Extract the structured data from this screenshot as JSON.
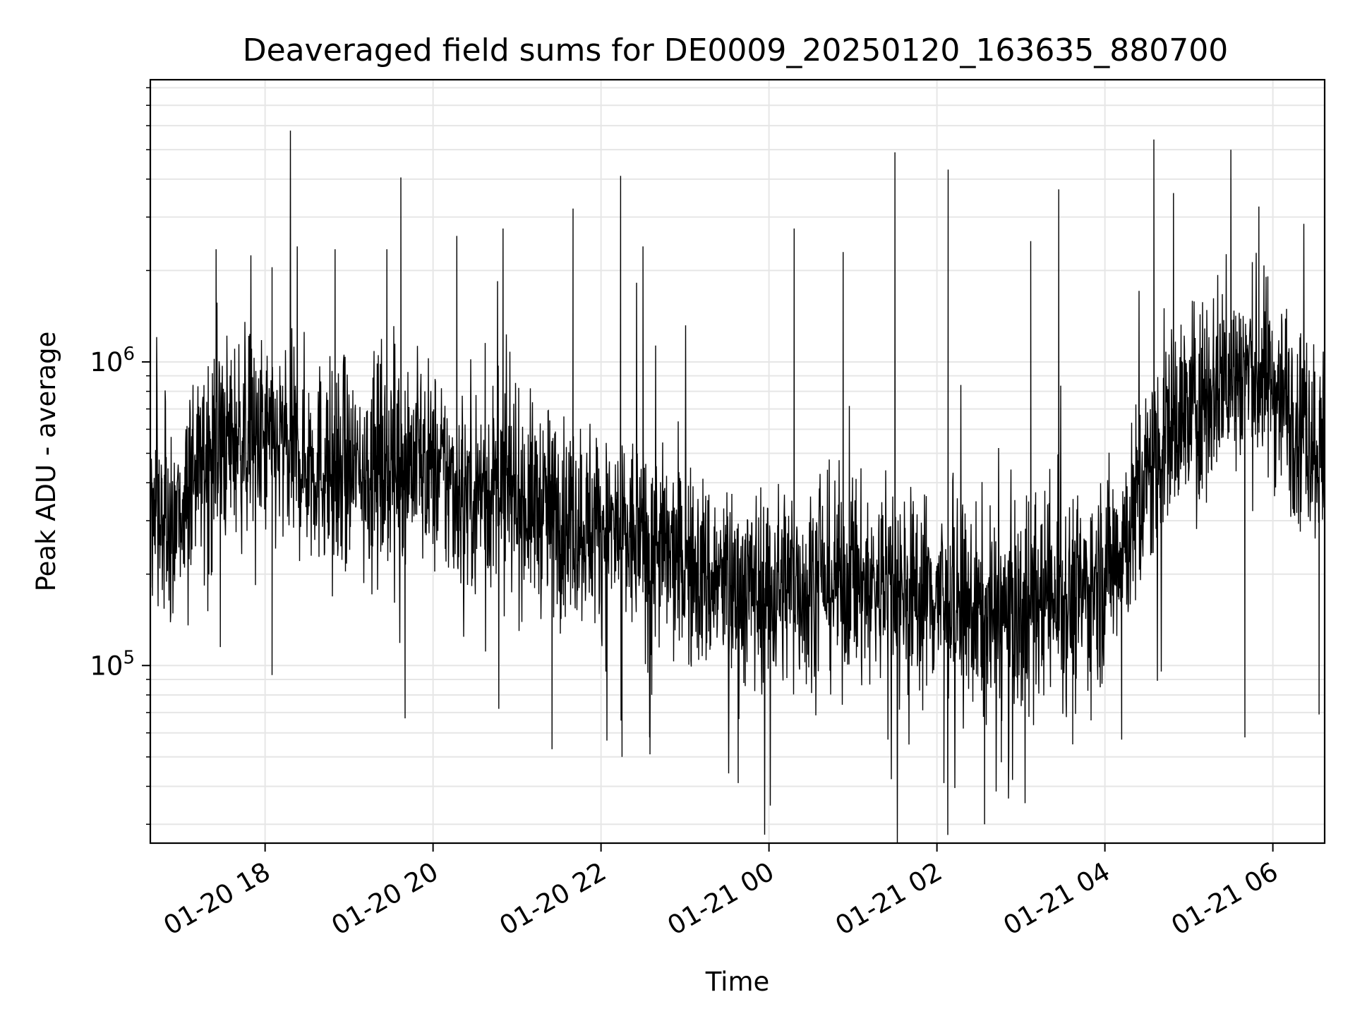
{
  "chart_data": {
    "type": "line",
    "title": "Deaveraged field sums for DE0009_20250120_163635_880700",
    "xlabel": "Time",
    "ylabel": "Peak ADU - average",
    "yscale": "log",
    "ylim": [
      26000,
      8500000
    ],
    "xlim": [
      "2025-01-20 16:38",
      "2025-01-21 06:37"
    ],
    "x_ticks": [
      {
        "t": "2025-01-20 18:00",
        "label": "01-20 18"
      },
      {
        "t": "2025-01-20 20:00",
        "label": "01-20 20"
      },
      {
        "t": "2025-01-20 22:00",
        "label": "01-20 22"
      },
      {
        "t": "2025-01-21 00:00",
        "label": "01-21 00"
      },
      {
        "t": "2025-01-21 02:00",
        "label": "01-21 02"
      },
      {
        "t": "2025-01-21 04:00",
        "label": "01-21 04"
      },
      {
        "t": "2025-01-21 06:00",
        "label": "01-21 06"
      }
    ],
    "y_ticks": [
      {
        "value": 100000,
        "base": "10",
        "exp": "5"
      },
      {
        "value": 1000000,
        "base": "10",
        "exp": "6"
      }
    ],
    "grid": true,
    "line_color": "#000000",
    "series": [
      {
        "x": [
          "2025-01-20 16:38",
          "2025-01-20 17:00",
          "2025-01-20 17:20",
          "2025-01-20 17:40",
          "2025-01-20 18:00",
          "2025-01-20 18:20",
          "2025-01-20 18:40",
          "2025-01-20 19:00",
          "2025-01-20 19:20",
          "2025-01-20 19:40",
          "2025-01-20 20:00",
          "2025-01-20 20:20",
          "2025-01-20 20:40",
          "2025-01-20 21:00",
          "2025-01-20 21:20",
          "2025-01-20 21:40",
          "2025-01-20 22:00",
          "2025-01-20 22:20",
          "2025-01-20 22:40",
          "2025-01-20 23:00",
          "2025-01-20 23:20",
          "2025-01-20 23:40",
          "2025-01-21 00:00",
          "2025-01-21 00:20",
          "2025-01-21 00:40",
          "2025-01-21 01:00",
          "2025-01-21 01:20",
          "2025-01-21 01:40",
          "2025-01-21 02:00",
          "2025-01-21 02:20",
          "2025-01-21 02:40",
          "2025-01-21 03:00",
          "2025-01-21 03:20",
          "2025-01-21 03:40",
          "2025-01-21 04:00",
          "2025-01-21 04:20",
          "2025-01-21 04:40",
          "2025-01-21 05:00",
          "2025-01-21 05:20",
          "2025-01-21 05:40",
          "2025-01-21 06:00",
          "2025-01-21 06:20",
          "2025-01-21 06:37"
        ],
        "values": [
          300000,
          320000,
          520000,
          560000,
          540000,
          500000,
          460000,
          430000,
          460000,
          500000,
          440000,
          380000,
          380000,
          350000,
          330000,
          300000,
          290000,
          260000,
          240000,
          210000,
          190000,
          180000,
          180000,
          190000,
          190000,
          185000,
          180000,
          180000,
          170000,
          150000,
          145000,
          150000,
          170000,
          165000,
          200000,
          300000,
          560000,
          700000,
          850000,
          950000,
          850000,
          650000,
          500000
        ]
      }
    ],
    "spikes": [
      {
        "x": "2025-01-20 17:25",
        "value": 2350000
      },
      {
        "x": "2025-01-20 18:05",
        "value": 2050000
      },
      {
        "x": "2025-01-20 18:23",
        "value": 2400000
      },
      {
        "x": "2025-01-20 18:50",
        "value": 2350000
      },
      {
        "x": "2025-01-20 19:27",
        "value": 2350000
      },
      {
        "x": "2025-01-20 19:37",
        "value": 4050000
      },
      {
        "x": "2025-01-20 20:17",
        "value": 2600000
      },
      {
        "x": "2025-01-20 20:50",
        "value": 2750000
      },
      {
        "x": "2025-01-20 21:40",
        "value": 3200000
      },
      {
        "x": "2025-01-20 22:14",
        "value": 4100000
      },
      {
        "x": "2025-01-20 22:30",
        "value": 2400000
      },
      {
        "x": "2025-01-21 00:18",
        "value": 2750000
      },
      {
        "x": "2025-01-21 00:53",
        "value": 2300000
      },
      {
        "x": "2025-01-21 01:30",
        "value": 4900000
      },
      {
        "x": "2025-01-21 02:08",
        "value": 4300000
      },
      {
        "x": "2025-01-21 03:07",
        "value": 2500000
      },
      {
        "x": "2025-01-21 03:27",
        "value": 3700000
      },
      {
        "x": "2025-01-21 04:35",
        "value": 5400000
      },
      {
        "x": "2025-01-21 04:49",
        "value": 3600000
      },
      {
        "x": "2025-01-21 05:30",
        "value": 5000000
      },
      {
        "x": "2025-01-21 05:50",
        "value": 3250000
      },
      {
        "x": "2025-01-20 17:28",
        "value": 115000
      },
      {
        "x": "2025-01-20 18:05",
        "value": 93000
      },
      {
        "x": "2025-01-20 19:40",
        "value": 67000
      },
      {
        "x": "2025-01-20 20:47",
        "value": 72000
      },
      {
        "x": "2025-01-20 21:25",
        "value": 53000
      },
      {
        "x": "2025-01-20 22:15",
        "value": 50000
      },
      {
        "x": "2025-01-20 22:35",
        "value": 51000
      },
      {
        "x": "2025-01-20 23:38",
        "value": 41000
      },
      {
        "x": "2025-01-21 01:25",
        "value": 57000
      },
      {
        "x": "2025-01-21 02:05",
        "value": 41000
      },
      {
        "x": "2025-01-21 02:34",
        "value": 30000
      },
      {
        "x": "2025-01-21 02:46",
        "value": 48000
      },
      {
        "x": "2025-01-21 02:54",
        "value": 42000
      },
      {
        "x": "2025-01-21 03:37",
        "value": 55000
      },
      {
        "x": "2025-01-21 04:12",
        "value": 57000
      },
      {
        "x": "2025-01-21 05:40",
        "value": 58000
      },
      {
        "x": "2025-01-21 06:33",
        "value": 69000
      }
    ]
  }
}
